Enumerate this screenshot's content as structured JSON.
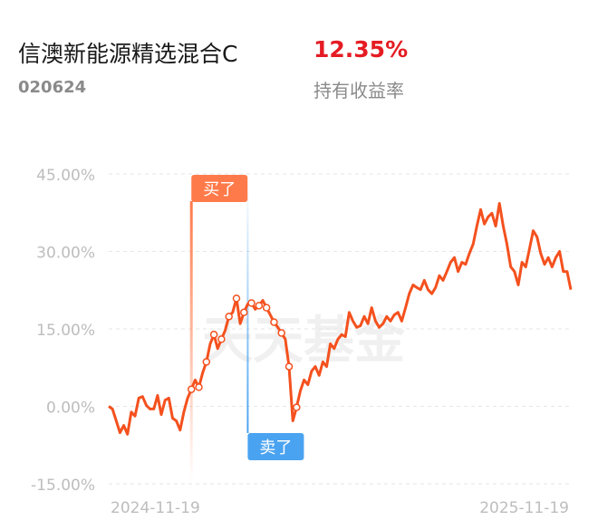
{
  "header": {
    "title": "信澳新能源精选混合C",
    "code": "020624",
    "return_value": "12.35%",
    "return_label": "持有收益率"
  },
  "chart_data": {
    "type": "line",
    "watermark": "天天基金",
    "annotations": [
      "买了",
      "卖了"
    ],
    "categories": [
      "2024-11-19",
      null,
      null,
      null,
      null,
      null,
      null,
      null,
      null,
      null,
      null,
      null,
      null,
      null,
      null,
      null,
      null,
      null,
      null,
      null,
      null,
      null,
      null,
      null,
      null,
      null,
      null,
      null,
      null,
      null,
      null,
      null,
      null,
      null,
      null,
      null,
      null,
      null,
      null,
      null,
      null,
      null,
      null,
      null,
      null,
      null,
      null,
      null,
      null,
      null,
      null,
      null,
      null,
      null,
      null,
      null,
      null,
      null,
      null,
      null,
      null,
      null,
      null,
      null,
      null,
      null,
      null,
      null,
      null,
      null,
      null,
      null,
      null,
      null,
      null,
      null,
      null,
      null,
      null,
      null,
      null,
      null,
      null,
      null,
      null,
      null,
      null,
      null,
      null,
      null,
      null,
      null,
      null,
      null,
      null,
      null,
      null,
      null,
      null,
      null,
      null,
      null,
      null,
      null,
      null,
      null,
      null,
      null,
      null,
      null,
      null,
      null,
      null,
      null,
      null,
      null,
      null,
      null,
      null,
      null,
      null,
      null,
      null,
      "2025-11-19"
    ],
    "series": [
      {
        "color": "#f4511e",
        "values": [
          0,
          -0.5,
          -2.8,
          -5.1,
          -3.7,
          -5.4,
          -1.1,
          -1.9,
          1.6,
          1.9,
          0.2,
          -0.5,
          -0.5,
          2.1,
          -1.6,
          1.2,
          1.6,
          -2.3,
          -2.8,
          -4.6,
          -1.1,
          1.6,
          3.3,
          5.1,
          3.7,
          6.5,
          8.6,
          12.1,
          13.9,
          11.2,
          13.0,
          14.7,
          17.4,
          18.2,
          20.9,
          16.0,
          18.2,
          19.8,
          20.0,
          18.8,
          19.5,
          20.5,
          19.1,
          17.7,
          16.3,
          15.3,
          14.2,
          13.0,
          7.7,
          -2.8,
          -0.2,
          3.0,
          5.1,
          4.2,
          6.8,
          7.7,
          6.0,
          8.6,
          7.7,
          12.1,
          11.2,
          13.0,
          13.9,
          13.5,
          18.2,
          16.5,
          15.3,
          15.6,
          17.4,
          16.0,
          19.1,
          16.5,
          15.3,
          16.0,
          17.4,
          16.5,
          17.7,
          18.2,
          16.5,
          19.1,
          21.8,
          23.5,
          23.0,
          22.6,
          24.4,
          22.6,
          21.8,
          23.0,
          25.3,
          24.4,
          26.1,
          27.9,
          28.8,
          26.1,
          27.9,
          27.5,
          29.6,
          31.4,
          34.9,
          38.1,
          35.3,
          36.7,
          37.4,
          34.9,
          39.3,
          34.9,
          31.4,
          27.0,
          26.1,
          23.5,
          27.9,
          27.0,
          30.5,
          34.0,
          32.8,
          29.6,
          27.5,
          28.8,
          27.0,
          28.8,
          30.0,
          26.1,
          26.1,
          22.6
        ]
      }
    ],
    "ylim": [
      -15,
      45
    ],
    "yticks": [
      {
        "value": -15,
        "label": "-15.00%"
      },
      {
        "value": 0,
        "label": "0.00%"
      },
      {
        "value": 15,
        "label": "15.00%"
      },
      {
        "value": 30,
        "label": "30.00%"
      },
      {
        "value": 45,
        "label": "45.00%"
      }
    ],
    "grid": true
  }
}
